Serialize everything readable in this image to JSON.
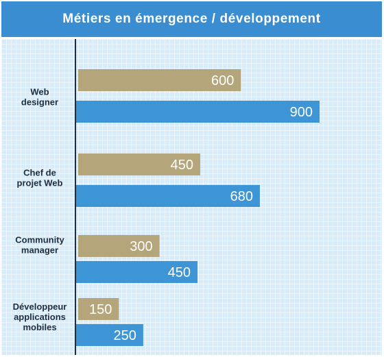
{
  "chart_data": {
    "type": "bar",
    "orientation": "horizontal",
    "title": "Métiers en émergence / développement",
    "categories": [
      [
        "Web",
        "designer"
      ],
      [
        "Chef de",
        "projet  Web"
      ],
      [
        "Community",
        "manager"
      ],
      [
        "Développeur",
        "applications",
        "mobiles"
      ]
    ],
    "series": [
      {
        "color": "#b5a57a",
        "values": [
          600,
          450,
          300,
          150
        ]
      },
      {
        "color": "#3d95d6",
        "values": [
          900,
          680,
          450,
          250
        ]
      }
    ],
    "xlim": [
      0,
      900
    ],
    "grid": false,
    "legend": "none"
  }
}
